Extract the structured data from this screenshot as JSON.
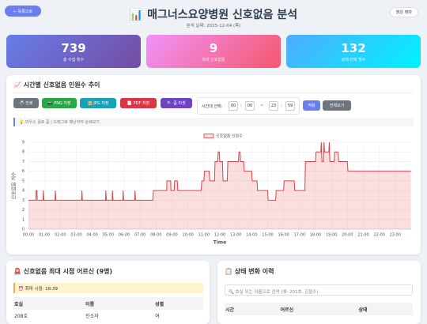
{
  "header": {
    "back": "← 목록으로",
    "title": "📊 매그너스요양병원 신호없음 분석",
    "date": "분석 날짜: 2025-12-04 (목)",
    "theme": "밝은 테마"
  },
  "stats": [
    {
      "value": "739",
      "label": "총 수집 횟수"
    },
    {
      "value": "9",
      "label": "최대 신호없음"
    },
    {
      "value": "132",
      "label": "상태 변화 횟수"
    }
  ],
  "chart_panel": {
    "title": "📈 시간별 신호없음 인원수 추이",
    "buttons": [
      "🖨️ 인쇄",
      "📷 PNG 저장",
      "🖼️ JPG 저장",
      "📄 PDF 저장",
      "🔍 줌 리셋"
    ],
    "range_label": "시간대 선택:",
    "start_h": "00",
    "start_m": "00",
    "sep": ":",
    "tilde": "~",
    "end_h": "23",
    "end_m": "59",
    "apply": "적용",
    "all": "전체보기",
    "hint": "💡 마우스 휠로 줌 | 드래그로 패닝하여 상세보기"
  },
  "chart_data": {
    "type": "line",
    "x_label": "Time",
    "y_label": "신호없음 개수",
    "x": [
      0,
      28,
      29,
      32,
      33,
      55,
      56,
      58,
      100,
      101,
      103,
      200,
      201,
      203,
      290,
      291,
      293,
      315,
      316,
      318,
      355,
      356,
      358,
      400,
      401,
      403,
      468,
      470,
      520,
      521,
      535,
      536,
      548,
      550,
      560,
      562,
      650,
      652,
      660,
      662,
      680,
      682,
      700,
      702,
      712,
      714,
      718,
      720,
      730,
      732,
      748,
      750,
      790,
      792,
      796,
      798,
      810,
      812,
      840,
      842,
      860,
      862,
      900,
      902,
      930,
      932,
      960,
      962,
      1000,
      1002,
      1040,
      1042,
      1080,
      1082,
      1100,
      1102,
      1104,
      1110,
      1112,
      1114,
      1130,
      1132,
      1134,
      1150,
      1152,
      1165,
      1167,
      1200,
      1202,
      1439
    ],
    "series": [
      {
        "name": "신호없음 인원수",
        "color": "#d9424a",
        "fill": "rgba(240,128,128,0.25)",
        "values": [
          3,
          3,
          4,
          4,
          3,
          3,
          4,
          3,
          3,
          4,
          3,
          3,
          4,
          3,
          3,
          4,
          3,
          3,
          4,
          3,
          3,
          4,
          3,
          3,
          4,
          3,
          3,
          4,
          4,
          5,
          5,
          4,
          4,
          5,
          5,
          4,
          4,
          5,
          5,
          6,
          6,
          5,
          5,
          7,
          7,
          8,
          8,
          7,
          7,
          5,
          5,
          7,
          7,
          8,
          8,
          7,
          7,
          6,
          6,
          5,
          5,
          4,
          4,
          3,
          3,
          4,
          4,
          5,
          5,
          4,
          4,
          7,
          7,
          8,
          8,
          9,
          7,
          7,
          9,
          8,
          8,
          9,
          7,
          7,
          8,
          8,
          7,
          7,
          6,
          6
        ]
      }
    ],
    "xlim": [
      0,
      1440
    ],
    "xticks": [
      {
        "value": 0,
        "label": "00:00"
      },
      {
        "value": 60,
        "label": "01:00"
      },
      {
        "value": 120,
        "label": "02:00"
      },
      {
        "value": 180,
        "label": "03:00"
      },
      {
        "value": 240,
        "label": "04:00"
      },
      {
        "value": 300,
        "label": "05:00"
      },
      {
        "value": 360,
        "label": "06:00"
      },
      {
        "value": 420,
        "label": "07:00"
      },
      {
        "value": 480,
        "label": "08:00"
      },
      {
        "value": 540,
        "label": "09:00"
      },
      {
        "value": 600,
        "label": "10:00"
      },
      {
        "value": 660,
        "label": "11:00"
      },
      {
        "value": 720,
        "label": "12:00"
      },
      {
        "value": 780,
        "label": "13:00"
      },
      {
        "value": 840,
        "label": "14:00"
      },
      {
        "value": 900,
        "label": "15:00"
      },
      {
        "value": 960,
        "label": "16:00"
      },
      {
        "value": 1020,
        "label": "17:00"
      },
      {
        "value": 1080,
        "label": "18:00"
      },
      {
        "value": 1140,
        "label": "19:00"
      },
      {
        "value": 1200,
        "label": "20:00"
      },
      {
        "value": 1260,
        "label": "21:00"
      },
      {
        "value": 1320,
        "label": "22:00"
      },
      {
        "value": 1380,
        "label": "23:00"
      }
    ],
    "ylim": [
      0,
      9
    ],
    "yticks": [
      0,
      1,
      2,
      3,
      4,
      5,
      6,
      7,
      8,
      9
    ],
    "grid": true,
    "legend": "top"
  },
  "peak_panel": {
    "title": "🚨 신호없음 최대 시점 어르신 (9명)",
    "peak": "⏰ 최대 시점: 18:39",
    "columns": [
      "호실",
      "이름",
      "성별"
    ],
    "rows": [
      [
        "208호",
        "진소자",
        "여"
      ]
    ]
  },
  "history_panel": {
    "title": "📋 상태 변화 이력",
    "search": "🔍 호실 또는 이름으로 검색 (예: 201호, 김철수)",
    "columns": [
      "시간",
      "어르신",
      "상태"
    ]
  }
}
